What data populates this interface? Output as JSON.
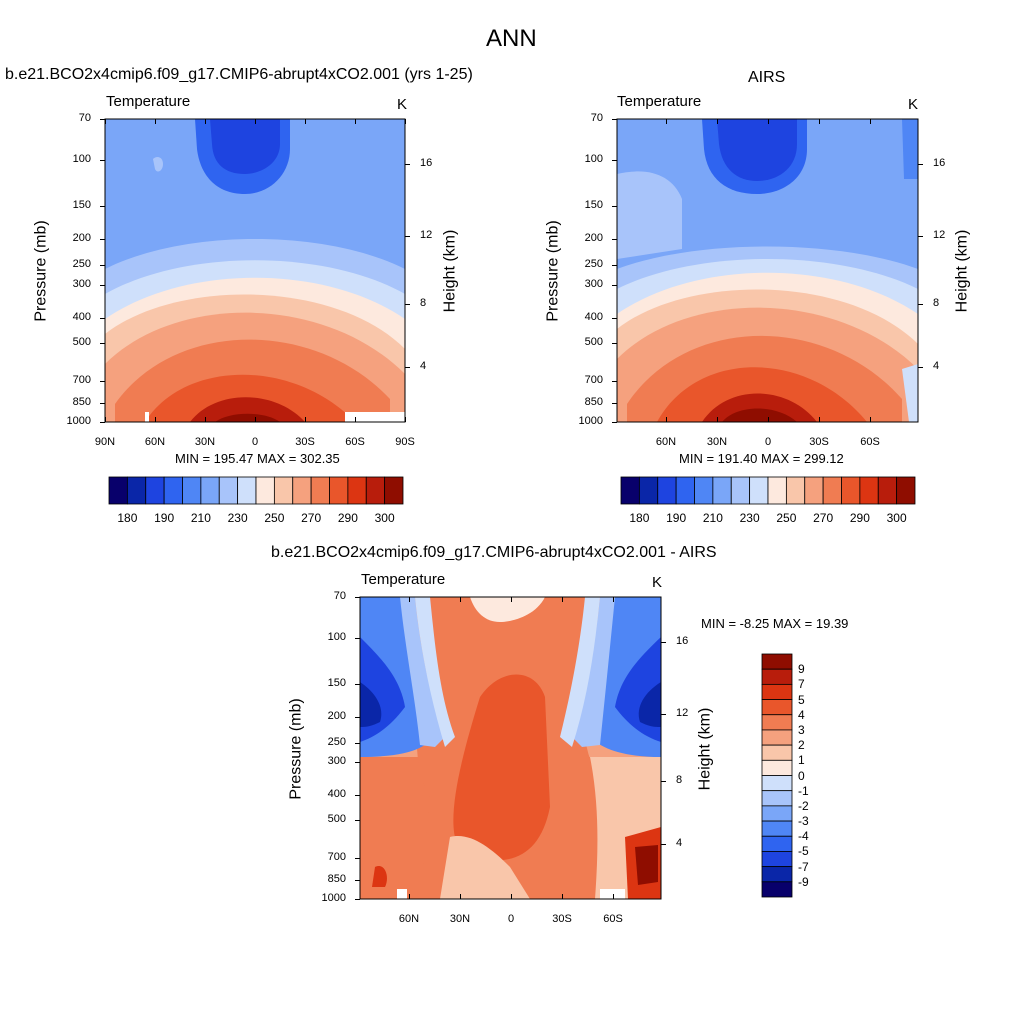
{
  "title": "ANN",
  "chart_data": [
    {
      "type": "heatmap",
      "title": "b.e21.BCO2x4cmip6.f09_g17.CMIP6-abrupt4xCO2.001 (yrs 1-25)",
      "left_label": "Temperature",
      "right_label": "K",
      "ylabel": "Pressure (mb)",
      "ylabel_right": "Height (km)",
      "pressure_ticks": [
        "70",
        "100",
        "150",
        "200",
        "250",
        "300",
        "400",
        "500",
        "700",
        "850",
        "1000"
      ],
      "height_ticks": [
        "16",
        "12",
        "8",
        "4"
      ],
      "x_ticks": [
        "90N",
        "60N",
        "30N",
        "0",
        "30S",
        "60S",
        "90S"
      ],
      "minmax": "MIN = 195.47  MAX = 302.35",
      "x": [
        -90,
        90
      ],
      "ylim": [
        1000,
        70
      ],
      "colorbar": {
        "labels": [
          "180",
          "190",
          "210",
          "230",
          "250",
          "270",
          "290",
          "300"
        ],
        "colors": [
          "#08006b",
          "#0a26a8",
          "#1e44e0",
          "#2f64f0",
          "#4f86f5",
          "#7aa6f8",
          "#a8c4fa",
          "#cfe0fb",
          "#fde9de",
          "#f9c6aa",
          "#f5a17e",
          "#f07c52",
          "#e9562b",
          "#dc3512",
          "#b81d0c",
          "#8f0d00"
        ]
      },
      "min": 195.47,
      "max": 302.35
    },
    {
      "type": "heatmap",
      "title": "AIRS",
      "left_label": "Temperature",
      "right_label": "K",
      "ylabel": "Pressure (mb)",
      "ylabel_right": "Height (km)",
      "pressure_ticks": [
        "70",
        "100",
        "150",
        "200",
        "250",
        "300",
        "400",
        "500",
        "700",
        "850",
        "1000"
      ],
      "height_ticks": [
        "16",
        "12",
        "8",
        "4"
      ],
      "x_ticks": [
        "60N",
        "30N",
        "0",
        "30S",
        "60S"
      ],
      "minmax": "MIN = 191.40  MAX = 299.12",
      "ylim": [
        1000,
        70
      ],
      "colorbar": {
        "labels": [
          "180",
          "190",
          "210",
          "230",
          "250",
          "270",
          "290",
          "300"
        ],
        "colors": [
          "#08006b",
          "#0a26a8",
          "#1e44e0",
          "#2f64f0",
          "#4f86f5",
          "#7aa6f8",
          "#a8c4fa",
          "#cfe0fb",
          "#fde9de",
          "#f9c6aa",
          "#f5a17e",
          "#f07c52",
          "#e9562b",
          "#dc3512",
          "#b81d0c",
          "#8f0d00"
        ]
      },
      "min": 191.4,
      "max": 299.12
    },
    {
      "type": "heatmap",
      "title": "b.e21.BCO2x4cmip6.f09_g17.CMIP6-abrupt4xCO2.001 - AIRS",
      "left_label": "Temperature",
      "right_label": "K",
      "ylabel": "Pressure (mb)",
      "ylabel_right": "Height (km)",
      "pressure_ticks": [
        "70",
        "100",
        "150",
        "200",
        "250",
        "300",
        "400",
        "500",
        "700",
        "850",
        "1000"
      ],
      "height_ticks": [
        "16",
        "12",
        "8",
        "4"
      ],
      "x_ticks": [
        "60N",
        "30N",
        "0",
        "30S",
        "60S"
      ],
      "minmax": "MIN =  -8.25  MAX =  19.39",
      "ylim": [
        1000,
        70
      ],
      "colorbar": {
        "labels": [
          "9",
          "7",
          "5",
          "4",
          "3",
          "2",
          "1",
          "0",
          "-1",
          "-2",
          "-3",
          "-4",
          "-5",
          "-7",
          "-9"
        ],
        "colors": [
          "#8f0d00",
          "#b81d0c",
          "#dc3512",
          "#e9562b",
          "#f07c52",
          "#f5a17e",
          "#f9c6aa",
          "#fde9de",
          "#cfe0fb",
          "#a8c4fa",
          "#7aa6f8",
          "#4f86f5",
          "#2f64f0",
          "#1e44e0",
          "#0a26a8",
          "#08006b"
        ]
      },
      "min": -8.25,
      "max": 19.39
    }
  ]
}
